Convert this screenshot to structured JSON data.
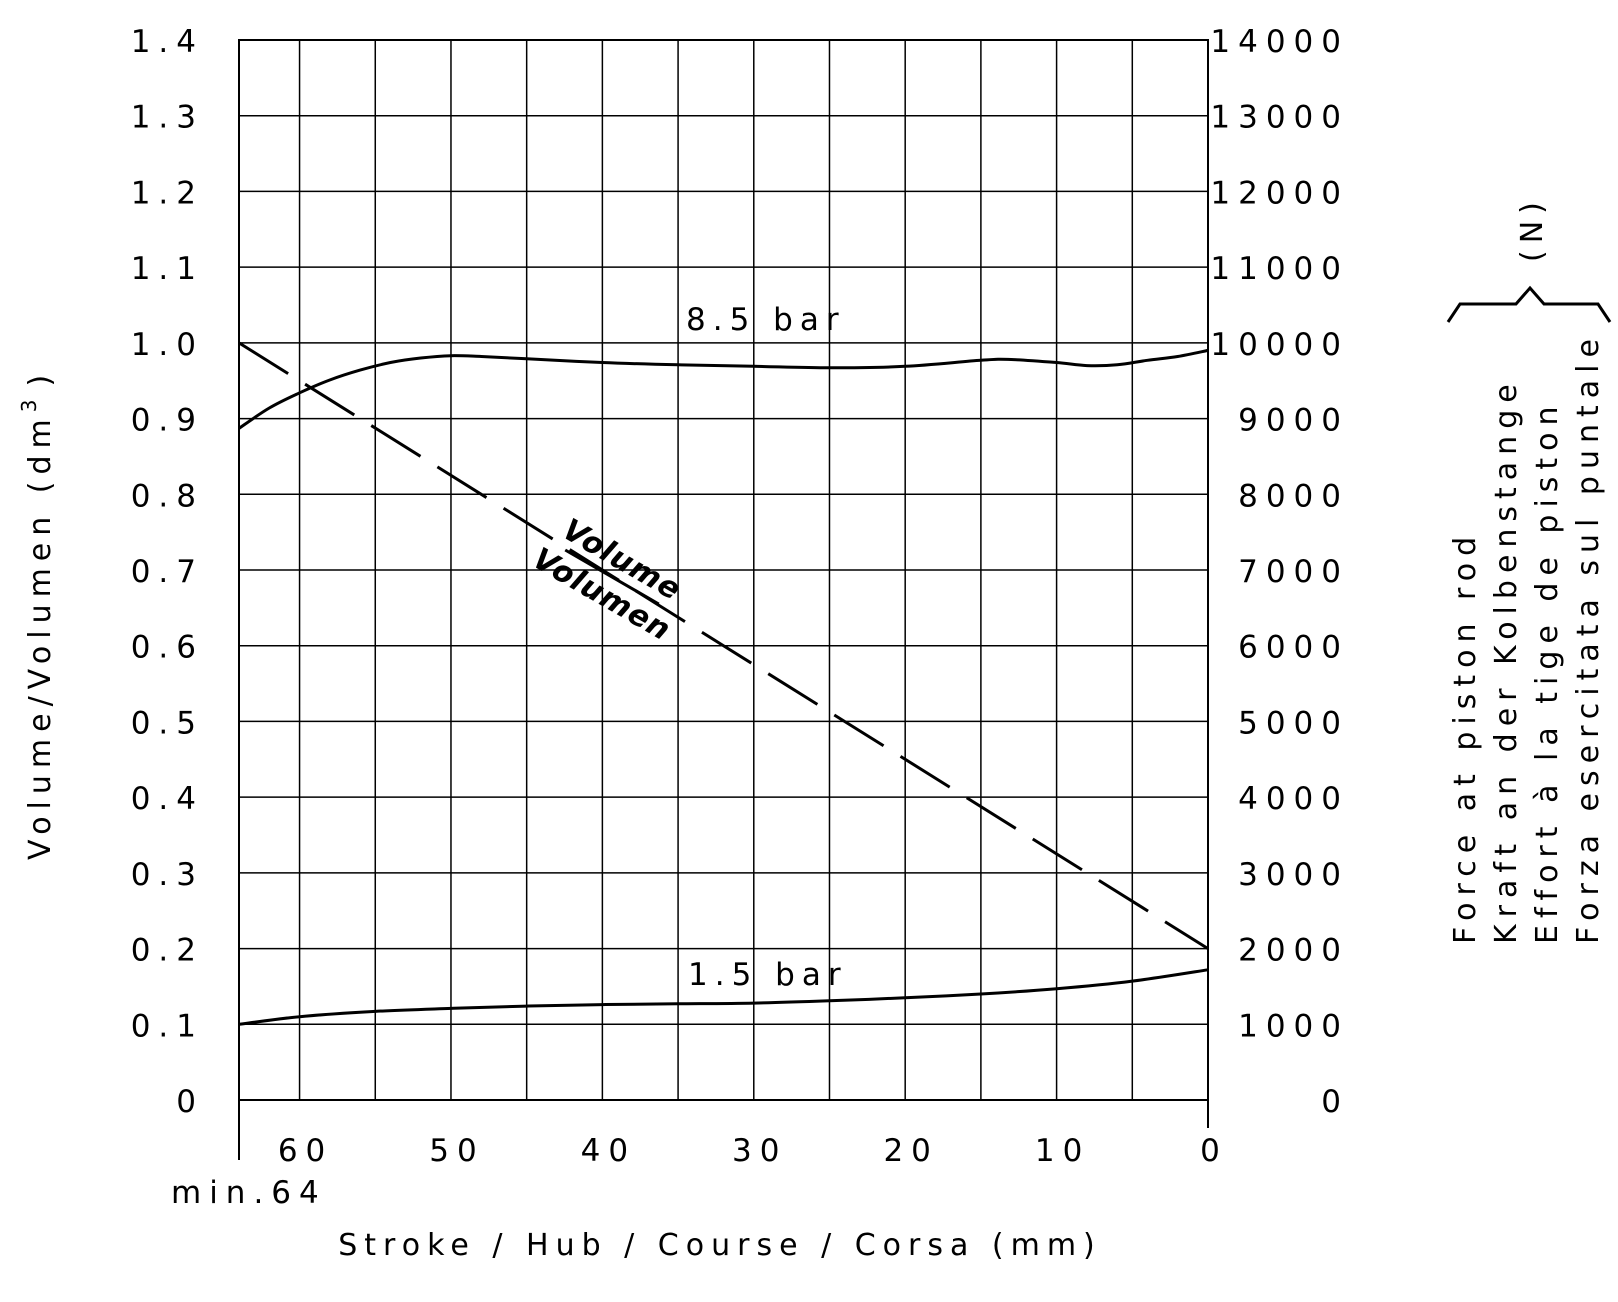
{
  "chart_data": {
    "type": "line",
    "x_axis": {
      "label": "Stroke / Hub / Course / Corsa (mm)",
      "range": [
        64,
        0
      ],
      "ticks": [
        "60",
        "50",
        "40",
        "30",
        "20",
        "10",
        "0"
      ],
      "tick_values": [
        60,
        50,
        40,
        30,
        20,
        10,
        0
      ],
      "min_note": "min.64",
      "grid_values": [
        60,
        55,
        50,
        45,
        40,
        35,
        30,
        25,
        20,
        15,
        10,
        5
      ]
    },
    "y_left": {
      "label": "Volume/Volumen (dm",
      "label_sup": "3",
      "label_close": ")",
      "range": [
        0,
        1.4
      ],
      "ticks": [
        "0",
        "0.1",
        "0.2",
        "0.3",
        "0.4",
        "0.5",
        "0.6",
        "0.7",
        "0.8",
        "0.9",
        "1.0",
        "1.1",
        "1.2",
        "1.3",
        "1.4"
      ]
    },
    "y_right": {
      "unit": "(N)",
      "labels": [
        "Force at piston rod",
        "Kraft an der Kolbenstange",
        "Effort à la tige de piston",
        "Forza esercitata sul puntale"
      ],
      "range": [
        0,
        14000
      ],
      "ticks": [
        "0",
        "1000",
        "2000",
        "3000",
        "4000",
        "5000",
        "6000",
        "7000",
        "8000",
        "9000",
        "10000",
        "11000",
        "12000",
        "13000",
        "14000"
      ]
    },
    "grid": true,
    "series": [
      {
        "name": "8.5 bar",
        "axis": "right",
        "style": "solid",
        "x": [
          64,
          62,
          60,
          58,
          56,
          54,
          52,
          50,
          48,
          45,
          40,
          35,
          30,
          25,
          20,
          15,
          13,
          10,
          8,
          6,
          4,
          2,
          0
        ],
        "y": [
          8870,
          9140,
          9340,
          9510,
          9640,
          9740,
          9800,
          9830,
          9820,
          9790,
          9740,
          9710,
          9690,
          9670,
          9690,
          9770,
          9780,
          9740,
          9700,
          9710,
          9770,
          9820,
          9900
        ]
      },
      {
        "name": "1.5 bar",
        "axis": "right",
        "style": "solid",
        "x": [
          64,
          60,
          55,
          50,
          45,
          40,
          35,
          30,
          25,
          20,
          15,
          10,
          5,
          0
        ],
        "y": [
          1000,
          1100,
          1170,
          1210,
          1240,
          1260,
          1270,
          1280,
          1310,
          1350,
          1400,
          1470,
          1570,
          1720
        ]
      },
      {
        "name": "Volume/Volumen",
        "axis": "left",
        "style": "dashed",
        "x": [
          64,
          0
        ],
        "y": [
          1.0,
          0.2
        ]
      }
    ],
    "annotations": {
      "volume_top": "Volume",
      "volume_bottom": "Volumen"
    }
  }
}
